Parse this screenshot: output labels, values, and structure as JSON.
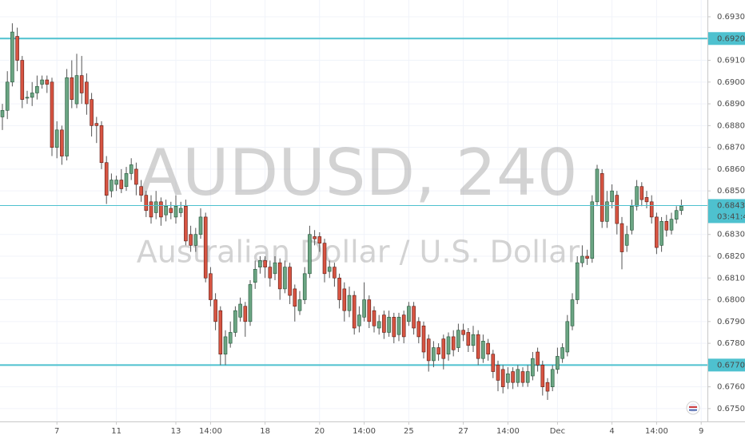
{
  "chart_data": {
    "type": "candlestick",
    "watermark_title": "AUDUSD, 240",
    "watermark_subtitle": "Australian Dollar / U.S. Dollar",
    "up_color": "#6ba583",
    "down_color": "#d75442",
    "categories": [
      null,
      null,
      null,
      null,
      null,
      null,
      null,
      null,
      null,
      null,
      null,
      "7",
      null,
      null,
      null,
      null,
      null,
      null,
      null,
      null,
      null,
      null,
      null,
      "11",
      null,
      null,
      null,
      null,
      null,
      null,
      null,
      null,
      null,
      null,
      null,
      "13",
      null,
      null,
      null,
      null,
      null,
      null,
      "14:00",
      null,
      null,
      null,
      null,
      null,
      null,
      null,
      null,
      null,
      null,
      "18",
      null,
      null,
      null,
      null,
      null,
      null,
      null,
      null,
      null,
      null,
      "20",
      null,
      null,
      null,
      null,
      null,
      null,
      null,
      null,
      "14:00",
      null,
      null,
      null,
      null,
      null,
      null,
      null,
      null,
      "25",
      null,
      null,
      null,
      null,
      null,
      null,
      null,
      null,
      null,
      null,
      "27",
      null,
      null,
      null,
      null,
      null,
      null,
      null,
      null,
      "14:00",
      null,
      null,
      null,
      null,
      null,
      null,
      null,
      null,
      null,
      "Dec",
      null,
      null,
      null,
      null,
      null,
      null,
      null,
      null,
      null,
      null,
      "4",
      null,
      null,
      null,
      null,
      null,
      null,
      null,
      null,
      "14:00",
      null,
      null,
      null,
      null,
      null,
      null,
      null,
      null,
      "9",
      null
    ],
    "open": [
      0.6884,
      0.6887,
      0.69,
      0.6921,
      0.691,
      0.6893,
      0.6893,
      0.6895,
      0.6899,
      0.6901,
      0.69,
      0.687,
      0.6878,
      0.6866,
      0.6902,
      0.689,
      0.6903,
      0.69,
      0.6892,
      0.6881,
      0.688,
      0.6863,
      0.685,
      0.6853,
      0.6855,
      0.6852,
      0.6858,
      0.686,
      0.6852,
      0.6848,
      0.6845,
      0.684,
      0.6845,
      0.6839,
      0.6842,
      0.6838,
      0.684,
      0.6843,
      0.683,
      0.6825,
      0.683,
      0.6838,
      0.6812,
      0.68,
      0.6795,
      0.6775,
      0.678,
      0.6785,
      0.6792,
      0.6797,
      0.679,
      0.6808,
      0.6815,
      0.6818,
      0.6815,
      0.6812,
      0.6817,
      0.6805,
      0.6815,
      0.6805,
      0.6795,
      0.68,
      0.6812,
      0.6829,
      0.6829,
      0.6826,
      0.6813,
      0.6815,
      0.681,
      0.6805,
      0.6795,
      0.6802,
      0.6788,
      0.6792,
      0.68,
      0.6795,
      0.6787,
      0.6793,
      0.6785,
      0.6792,
      0.6784,
      0.6793,
      0.679,
      0.6797,
      0.679,
      0.6788,
      0.6782,
      0.6772,
      0.6778,
      0.6782,
      0.6775,
      0.6783,
      0.6778,
      0.6786,
      0.6785,
      0.6779,
      0.6784,
      0.6773,
      0.678,
      0.6775,
      0.677,
      0.6768,
      0.6762,
      0.6767,
      0.6762,
      0.6767,
      0.6762,
      0.6765,
      0.6776,
      0.677,
      0.6762,
      0.676,
      0.6768,
      0.6773,
      0.6776,
      0.6788,
      0.68,
      0.6817,
      0.682,
      0.6819,
      0.6845,
      0.6858,
      0.6836,
      0.6845,
      0.6848,
      0.6835,
      0.6825,
      0.6832,
      0.6843,
      0.6852,
      0.6847,
      0.6845,
      0.6838,
      0.6825,
      0.6836,
      0.6832,
      0.6837,
      0.6841,
      null,
      null,
      null,
      null,
      null
    ],
    "high": [
      0.689,
      0.6905,
      0.6927,
      0.6925,
      0.6912,
      0.6896,
      0.69,
      0.6903,
      0.6903,
      0.6903,
      0.6902,
      0.6882,
      0.688,
      0.6906,
      0.691,
      0.6913,
      0.6912,
      0.6904,
      0.6895,
      0.6884,
      0.6882,
      0.6866,
      0.6858,
      0.6857,
      0.686,
      0.6861,
      0.6865,
      0.6863,
      0.6855,
      0.685,
      0.6848,
      0.685,
      0.6847,
      0.6846,
      0.6845,
      0.6848,
      0.6845,
      0.6846,
      0.6834,
      0.6833,
      0.6842,
      0.684,
      0.6815,
      0.6803,
      0.6797,
      0.6786,
      0.679,
      0.6797,
      0.6801,
      0.6799,
      0.6809,
      0.6818,
      0.682,
      0.682,
      0.6818,
      0.682,
      0.6819,
      0.6818,
      0.6817,
      0.6807,
      0.6804,
      0.6815,
      0.6834,
      0.6832,
      0.6831,
      0.6828,
      0.6818,
      0.6817,
      0.6812,
      0.6808,
      0.6806,
      0.6804,
      0.6797,
      0.6808,
      0.6802,
      0.6797,
      0.6793,
      0.6795,
      0.6795,
      0.6794,
      0.6794,
      0.6795,
      0.6799,
      0.6799,
      0.6792,
      0.679,
      0.6784,
      0.6781,
      0.678,
      0.6784,
      0.6785,
      0.6786,
      0.6789,
      0.6789,
      0.6787,
      0.6788,
      0.6786,
      0.6784,
      0.6782,
      0.6777,
      0.6772,
      0.677,
      0.6769,
      0.6769,
      0.677,
      0.6769,
      0.677,
      0.6776,
      0.6778,
      0.6772,
      0.6764,
      0.677,
      0.6778,
      0.678,
      0.6793,
      0.6803,
      0.682,
      0.6825,
      0.6823,
      0.6848,
      0.6862,
      0.686,
      0.685,
      0.6853,
      0.685,
      0.6838,
      0.6834,
      0.6846,
      0.6855,
      0.6854,
      0.685,
      0.6848,
      0.684,
      0.6838,
      0.6839,
      0.684,
      0.6843,
      0.6846,
      null,
      null,
      null,
      null,
      null
    ],
    "low": [
      0.6878,
      0.6883,
      0.6898,
      0.6905,
      0.6888,
      0.689,
      0.6889,
      0.6892,
      0.6897,
      0.6895,
      0.6866,
      0.6865,
      0.6862,
      0.6864,
      0.6888,
      0.6888,
      0.689,
      0.6885,
      0.6875,
      0.6872,
      0.686,
      0.6844,
      0.6847,
      0.685,
      0.6849,
      0.685,
      0.6855,
      0.6848,
      0.6845,
      0.6838,
      0.6835,
      0.6837,
      0.6834,
      0.6836,
      0.6837,
      0.6835,
      0.6838,
      0.6825,
      0.6822,
      0.6822,
      0.6828,
      0.6808,
      0.6797,
      0.6786,
      0.677,
      0.677,
      0.6778,
      0.6783,
      0.679,
      0.6783,
      0.6788,
      0.6805,
      0.6812,
      0.681,
      0.6806,
      0.6809,
      0.68,
      0.6803,
      0.6798,
      0.679,
      0.6793,
      0.6798,
      0.681,
      0.6825,
      0.6822,
      0.6808,
      0.681,
      0.6806,
      0.6796,
      0.679,
      0.6792,
      0.6784,
      0.6785,
      0.679,
      0.6787,
      0.6785,
      0.6784,
      0.6782,
      0.6783,
      0.678,
      0.6781,
      0.678,
      0.6788,
      0.6784,
      0.678,
      0.6773,
      0.6767,
      0.6769,
      0.6772,
      0.6768,
      0.6772,
      0.6774,
      0.6776,
      0.6781,
      0.6776,
      0.6776,
      0.677,
      0.6771,
      0.6772,
      0.6764,
      0.6758,
      0.6757,
      0.6759,
      0.6759,
      0.676,
      0.676,
      0.676,
      0.6763,
      0.6767,
      0.6756,
      0.6754,
      0.6758,
      0.6766,
      0.6771,
      0.6774,
      0.6786,
      0.6798,
      0.6815,
      0.6816,
      0.6817,
      0.6843,
      0.6833,
      0.6833,
      0.6842,
      0.683,
      0.6814,
      0.6822,
      0.683,
      0.6841,
      0.6843,
      0.6842,
      0.6835,
      0.6821,
      0.6822,
      0.6829,
      0.683,
      0.6835,
      0.6839,
      null,
      null,
      null,
      null,
      null
    ],
    "close": [
      0.6887,
      0.69,
      0.6923,
      0.691,
      0.6892,
      0.6893,
      0.6895,
      0.6898,
      0.6901,
      0.6899,
      0.687,
      0.6878,
      0.6866,
      0.6902,
      0.6892,
      0.6903,
      0.6895,
      0.689,
      0.688,
      0.688,
      0.6863,
      0.6848,
      0.6855,
      0.6855,
      0.6851,
      0.6858,
      0.6862,
      0.6853,
      0.6848,
      0.6841,
      0.6838,
      0.6845,
      0.6838,
      0.6843,
      0.684,
      0.6843,
      0.6842,
      0.6827,
      0.6825,
      0.683,
      0.6838,
      0.681,
      0.68,
      0.679,
      0.6775,
      0.6783,
      0.6785,
      0.6795,
      0.6798,
      0.679,
      0.6807,
      0.6814,
      0.6818,
      0.6815,
      0.681,
      0.6817,
      0.6805,
      0.6815,
      0.6802,
      0.6797,
      0.68,
      0.6812,
      0.683,
      0.6828,
      0.6826,
      0.6812,
      0.6815,
      0.681,
      0.68,
      0.6795,
      0.6802,
      0.6787,
      0.6793,
      0.68,
      0.679,
      0.6788,
      0.679,
      0.6785,
      0.6792,
      0.6783,
      0.6792,
      0.6783,
      0.6797,
      0.6787,
      0.6783,
      0.6776,
      0.6772,
      0.6778,
      0.6775,
      0.6773,
      0.6783,
      0.6777,
      0.6786,
      0.6784,
      0.6779,
      0.6784,
      0.6773,
      0.6781,
      0.6775,
      0.6767,
      0.6763,
      0.676,
      0.6766,
      0.6762,
      0.6768,
      0.6762,
      0.6767,
      0.6773,
      0.677,
      0.676,
      0.6758,
      0.6768,
      0.6774,
      0.6778,
      0.679,
      0.68,
      0.6817,
      0.682,
      0.6819,
      0.6845,
      0.686,
      0.6836,
      0.6845,
      0.685,
      0.6835,
      0.6822,
      0.683,
      0.6843,
      0.6852,
      0.6846,
      0.6845,
      0.6838,
      0.6824,
      0.6836,
      0.6832,
      0.6837,
      0.6841,
      0.6843,
      null,
      null,
      null,
      null,
      null
    ],
    "ylim": [
      0.67441,
      0.69377
    ],
    "yticks": [
      {
        "value": 0.693,
        "label": "0.69300"
      },
      {
        "value": 0.691,
        "label": "0.69100"
      },
      {
        "value": 0.69,
        "label": "0.69000"
      },
      {
        "value": 0.689,
        "label": "0.68900"
      },
      {
        "value": 0.688,
        "label": "0.68800"
      },
      {
        "value": 0.687,
        "label": "0.68700"
      },
      {
        "value": 0.686,
        "label": "0.68600"
      },
      {
        "value": 0.685,
        "label": "0.68500"
      },
      {
        "value": 0.683,
        "label": "0.68300"
      },
      {
        "value": 0.682,
        "label": "0.68200"
      },
      {
        "value": 0.681,
        "label": "0.68100"
      },
      {
        "value": 0.68,
        "label": "0.68000"
      },
      {
        "value": 0.679,
        "label": "0.67900"
      },
      {
        "value": 0.678,
        "label": "0.67800"
      },
      {
        "value": 0.676,
        "label": "0.67600"
      },
      {
        "value": 0.675,
        "label": "0.67500"
      }
    ],
    "grid": true,
    "hlines": [
      {
        "value": 0.692,
        "label": "0.69200",
        "color": "#4ec1cf"
      },
      {
        "value": 0.677,
        "label": "0.67700",
        "color": "#4ec1cf"
      }
    ],
    "last_price": {
      "value": 0.68433,
      "label": "0.68433",
      "countdown": "03:41:44",
      "color": "#4ec1cf"
    }
  }
}
